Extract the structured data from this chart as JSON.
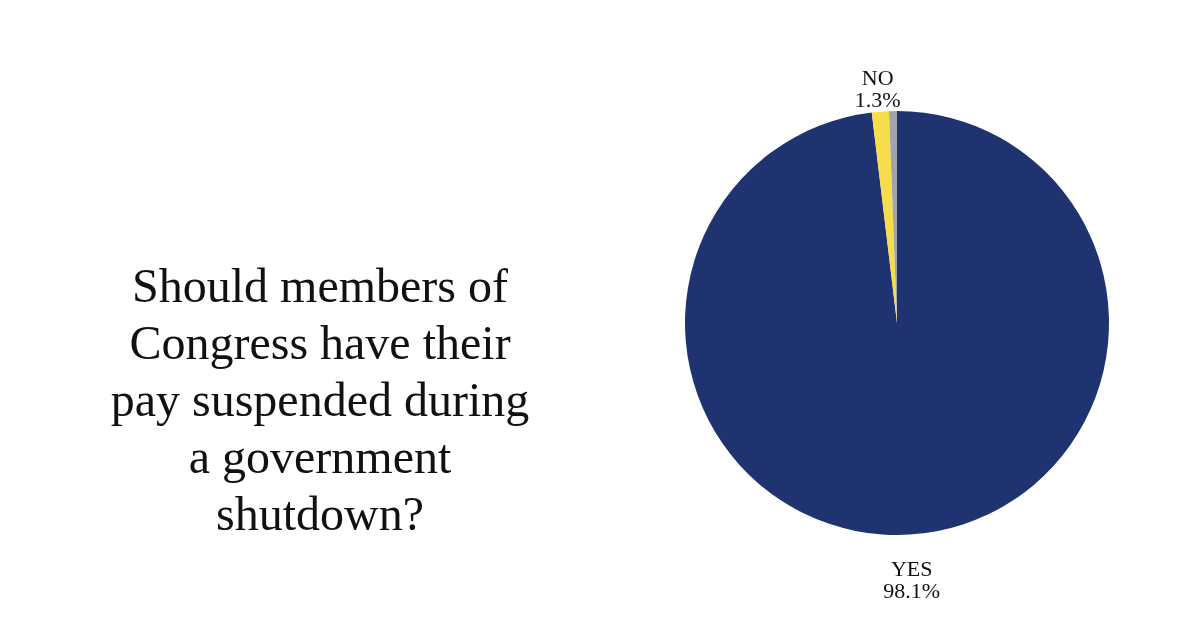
{
  "chart_data": {
    "type": "pie",
    "title": "Should members of Congress have their pay suspended during a government shutdown?",
    "categories": [
      "YES",
      "NO",
      null
    ],
    "values": [
      98.1,
      1.3,
      0.6
    ],
    "value_labels": [
      "98.1%",
      "1.3%",
      null
    ],
    "colors": [
      "#1f3370",
      "#f6dd4c",
      "#a3a3ab"
    ]
  }
}
